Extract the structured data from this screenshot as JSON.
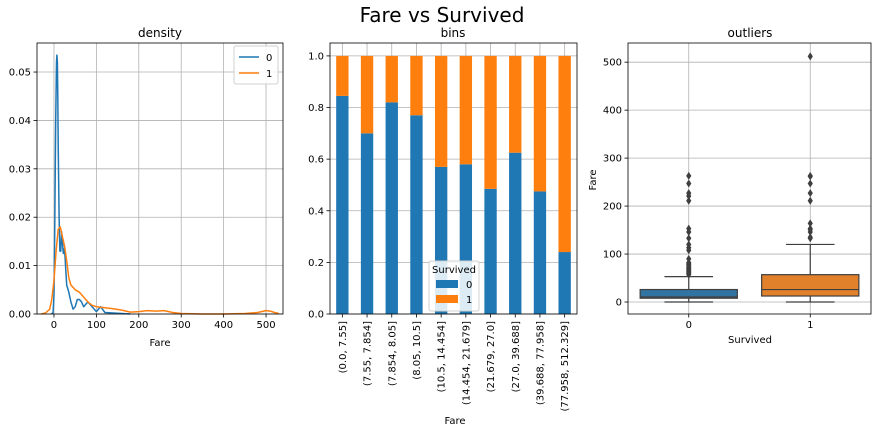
{
  "suptitle": "Fare   vs   Survived",
  "colors": {
    "c0": "#1f77b4",
    "c1": "#ff7f0e",
    "box0": "#3274a1",
    "box1": "#e1812c",
    "grid": "#b0b0b0"
  },
  "chart_data": [
    {
      "type": "line",
      "title": "density",
      "xlabel": "Fare",
      "ylabel": "",
      "xlim": [
        -40,
        540
      ],
      "ylim": [
        0,
        0.056
      ],
      "xticks": [
        0,
        100,
        200,
        300,
        400,
        500
      ],
      "yticks": [
        0.0,
        0.01,
        0.02,
        0.03,
        0.04,
        0.05
      ],
      "ytick_labels": [
        "0.00",
        "0.01",
        "0.02",
        "0.03",
        "0.04",
        "0.05"
      ],
      "grid": true,
      "legend": {
        "placement": "top-right",
        "entries": [
          "0",
          "1"
        ]
      },
      "series": [
        {
          "name": "0",
          "color": "#1f77b4",
          "x": [
            -6,
            -2,
            0,
            2,
            4,
            6,
            7,
            8,
            9,
            10,
            12,
            14,
            16,
            18,
            20,
            22,
            24,
            26,
            28,
            30,
            35,
            40,
            45,
            50,
            55,
            60,
            65,
            70,
            75,
            80,
            90,
            100,
            110,
            120,
            140,
            160,
            180
          ],
          "y": [
            0,
            0.0003,
            0.004,
            0.019,
            0.04,
            0.052,
            0.0535,
            0.052,
            0.045,
            0.035,
            0.02,
            0.013,
            0.013,
            0.017,
            0.015,
            0.0125,
            0.0135,
            0.012,
            0.009,
            0.006,
            0.0045,
            0.0025,
            0.001,
            0.0015,
            0.003,
            0.003,
            0.0025,
            0.0015,
            0.002,
            0.0025,
            0.0015,
            0.0005,
            0.0015,
            0.0003,
            0.0002,
            0.0001,
            0.0
          ]
        },
        {
          "name": "1",
          "color": "#ff7f0e",
          "x": [
            -30,
            -20,
            -10,
            -5,
            0,
            5,
            10,
            15,
            20,
            25,
            30,
            35,
            40,
            50,
            60,
            70,
            80,
            90,
            100,
            120,
            140,
            160,
            180,
            200,
            220,
            240,
            260,
            280,
            300,
            350,
            400,
            450,
            480,
            500,
            510,
            520,
            530
          ],
          "y": [
            0,
            0.0002,
            0.001,
            0.003,
            0.007,
            0.013,
            0.0175,
            0.018,
            0.016,
            0.014,
            0.011,
            0.0075,
            0.006,
            0.005,
            0.0045,
            0.0035,
            0.0025,
            0.0018,
            0.0015,
            0.0013,
            0.0011,
            0.0008,
            0.0004,
            0.0005,
            0.0007,
            0.0006,
            0.0007,
            0.0003,
            0.0001,
            0.0,
            0.0,
            0.0001,
            0.0003,
            0.0007,
            0.0006,
            0.0003,
            0.0001
          ]
        }
      ]
    },
    {
      "type": "bar",
      "stacked": true,
      "title": "bins",
      "xlabel": "Fare",
      "ylabel": "",
      "ylim": [
        0,
        1.05
      ],
      "yticks": [
        0.0,
        0.2,
        0.4,
        0.6,
        0.8,
        1.0
      ],
      "ytick_labels": [
        "0.0",
        "0.2",
        "0.4",
        "0.6",
        "0.8",
        "1.0"
      ],
      "grid": true,
      "categories": [
        "(0.0, 7.55]",
        "(7.55, 7.854]",
        "(7.854, 8.05]",
        "(8.05, 10.5]",
        "(10.5, 14.454]",
        "(14.454, 21.679]",
        "(21.679, 27.0]",
        "(27.0, 39.688]",
        "(39.688, 77.958]",
        "(77.958, 512.329]"
      ],
      "legend": {
        "placement": "lower-center",
        "title": "Survived",
        "entries": [
          "0",
          "1"
        ]
      },
      "series": [
        {
          "name": "0",
          "color": "#1f77b4",
          "values": [
            0.845,
            0.7,
            0.82,
            0.77,
            0.57,
            0.58,
            0.485,
            0.625,
            0.475,
            0.24
          ]
        },
        {
          "name": "1",
          "color": "#ff7f0e",
          "values": [
            0.155,
            0.3,
            0.18,
            0.23,
            0.43,
            0.42,
            0.515,
            0.375,
            0.525,
            0.76
          ]
        }
      ]
    },
    {
      "type": "box",
      "title": "outliers",
      "xlabel": "Survived",
      "ylabel": "Fare",
      "ylim": [
        -25,
        540
      ],
      "yticks": [
        0,
        100,
        200,
        300,
        400,
        500
      ],
      "grid": true,
      "categories": [
        "0",
        "1"
      ],
      "boxes": [
        {
          "name": "0",
          "color": "#3274a1",
          "q1": 7.9,
          "median": 10.5,
          "q3": 26,
          "whisker_low": 0,
          "whisker_high": 53,
          "outliers": [
            57,
            59,
            61,
            63,
            65,
            67,
            69,
            71,
            73,
            76,
            78,
            80,
            82,
            90,
            108,
            113,
            120,
            133,
            146,
            153,
            211,
            221,
            227,
            247,
            263
          ]
        },
        {
          "name": "1",
          "color": "#e1812c",
          "q1": 12.5,
          "median": 26,
          "q3": 57,
          "whisker_low": 0,
          "whisker_high": 120,
          "outliers": [
            133,
            135,
            146,
            151,
            153,
            164,
            211,
            227,
            247,
            262,
            263,
            512
          ]
        }
      ]
    }
  ]
}
